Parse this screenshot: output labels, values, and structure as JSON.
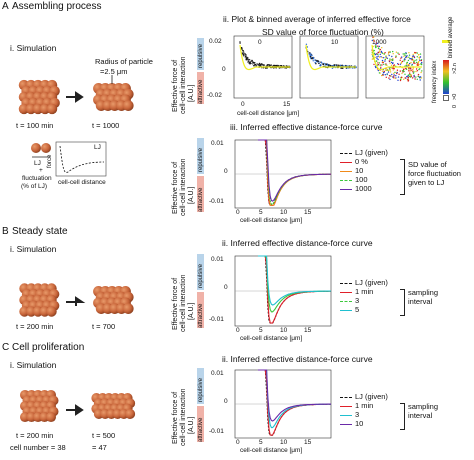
{
  "sectionA": {
    "letter": "A",
    "title": "Assembling process",
    "sim_label": "i. Simulation",
    "radius_text_1": "Radius of particle",
    "radius_text_2": "=2.5 μm",
    "t1": "t = 100 min",
    "t2": "t = 1000",
    "lj_label": "LJ",
    "plus": "+",
    "fluct_1": "fluctuation",
    "fluct_2": "(% of LJ)",
    "force_label": "force",
    "celldist_label": "cell-cell distance",
    "lj_inset": "LJ",
    "panel_ii_title": "ii. Plot & binned average of inferred effective force",
    "sd_title": "SD value of force fluctuation (%)",
    "sd_values": [
      "0",
      "10",
      "1000"
    ],
    "yaxis_1": "Effective force of",
    "yaxis_2": "cell-cell interaction",
    "yaxis_3": "[A.U.]",
    "repulsive": "repulsive",
    "attractive": "attractive",
    "y_ticks_ii": [
      "0.02",
      "0",
      "-0.02"
    ],
    "x_ticks_ii": [
      "0",
      "15"
    ],
    "xlabel_ii": "cell-cell distance [μm]",
    "binned": "binned average",
    "freq_index": "frequency index",
    "freq_top": ">2.n",
    "freq_zero": ">0",
    "freq_bottom": "0",
    "panel_iii_title": "iii. Inferred effective distance-force curve",
    "y_ticks_iii": [
      "0.01",
      "0",
      "-0.01"
    ],
    "x_ticks_iii": [
      "0",
      "5",
      "10",
      "15"
    ],
    "xlabel_iii": "cell-cell distance [μm]",
    "legend": [
      "LJ (given)",
      "0 %",
      "10",
      "100",
      "1000"
    ],
    "legend_note": [
      "SD value of",
      "force fluctuation",
      "given to LJ"
    ]
  },
  "sectionB": {
    "letter": "B",
    "title": "Steady state",
    "sim_label": "i. Simulation",
    "t1": "t = 200 min",
    "t2": "t = 700",
    "panel_title": "ii. Inferred effective distance-force curve",
    "y_ticks": [
      "0.01",
      "0",
      "-0.01"
    ],
    "x_ticks": [
      "0",
      "5",
      "10",
      "15"
    ],
    "xlabel": "cell-cell distance [μm]",
    "legend": [
      "LJ (given)",
      "1 min",
      "3",
      "5"
    ],
    "legend_note": [
      "sampling",
      "interval"
    ]
  },
  "sectionC": {
    "letter": "C",
    "title": "Cell proliferation",
    "sim_label": "i. Simulation",
    "t1": "t = 200 min",
    "t2": "t = 500",
    "n1": "cell number = 38",
    "n2": "= 47",
    "panel_title": "ii. Inferred effective distance-force curve",
    "y_ticks": [
      "0.01",
      "0",
      "-0.01"
    ],
    "x_ticks": [
      "0",
      "5",
      "10",
      "15"
    ],
    "xlabel": "cell-cell distance [μm]",
    "legend": [
      "LJ (given)",
      "1 min",
      "3",
      "10"
    ],
    "legend_note": [
      "sampling",
      "interval"
    ]
  },
  "colors": {
    "cell": "#c8653a",
    "repulsive_band": "#b9d4ea",
    "attractive_band": "#f0b2a8",
    "lj": "#111111",
    "red": "#e0202a",
    "orange": "#f08a1a",
    "green": "#3cc83c",
    "blue": "#3a3ad0",
    "cyan": "#20c0d0",
    "purple": "#6a2aa8"
  }
}
